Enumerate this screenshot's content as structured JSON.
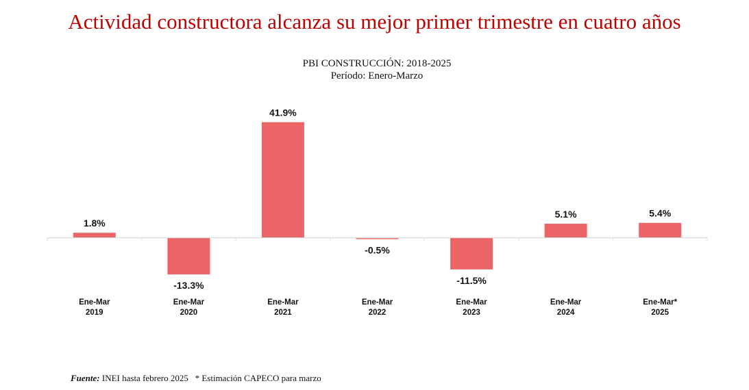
{
  "headline": "Actividad constructora alcanza su mejor primer trimestre en cuatro años",
  "chart_data": {
    "type": "bar",
    "title": "PBI CONSTRUCCIÓN: 2018-2025",
    "subtitle": "Período: Enero-Marzo",
    "categories": [
      [
        "Ene-Mar",
        "2019"
      ],
      [
        "Ene-Mar",
        "2020"
      ],
      [
        "Ene-Mar",
        "2021"
      ],
      [
        "Ene-Mar",
        "2022"
      ],
      [
        "Ene-Mar",
        "2023"
      ],
      [
        "Ene-Mar",
        "2024"
      ],
      [
        "Ene-Mar*",
        "2025"
      ]
    ],
    "values": [
      1.8,
      -13.3,
      41.9,
      -0.5,
      -11.5,
      5.1,
      5.4
    ],
    "data_labels": [
      "1.8%",
      "-13.3%",
      "41.9%",
      "-0.5%",
      "-11.5%",
      "5.1%",
      "5.4%"
    ],
    "unit": "%",
    "bar_color": "#ec6566",
    "axis_color": "#d9d9d9",
    "grid": false,
    "legend": "none"
  },
  "footer": {
    "source_label": "Fuente:",
    "source_text": " INEI hasta febrero 2025   * Estimación CAPECO para marzo"
  }
}
